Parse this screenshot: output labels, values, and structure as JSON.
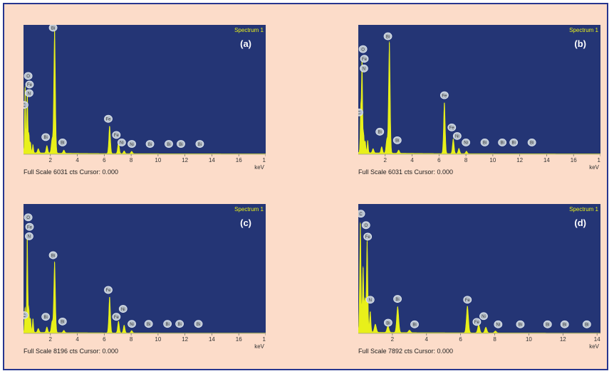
{
  "colors": {
    "plot_bg": "#243575",
    "frame_border": "#27368f",
    "frame_bg": "#fcdcc9",
    "spectrum": "#e8f01a",
    "label_fill": "#b9c3cf",
    "spectrum_title": "#e8f01a"
  },
  "chart_data": [
    {
      "type": "line",
      "panel_label": "(a)",
      "spectrum_title": "Spectrum 1",
      "x_ticks": [
        "2",
        "4",
        "6",
        "8",
        "10",
        "12",
        "14",
        "16",
        "18"
      ],
      "xlabel": "keV",
      "xlim": [
        0,
        18
      ],
      "ylim": [
        0,
        6031
      ],
      "full_scale_text": "Full Scale 6031 cts Cursor: 0.000",
      "peaks": [
        {
          "x": 0.12,
          "y": 3100
        },
        {
          "x": 0.28,
          "y": 2900
        },
        {
          "x": 0.4,
          "y": 900
        },
        {
          "x": 0.52,
          "y": 500
        },
        {
          "x": 0.7,
          "y": 400
        },
        {
          "x": 1.1,
          "y": 200
        },
        {
          "x": 1.74,
          "y": 350
        },
        {
          "x": 2.12,
          "y": 650
        },
        {
          "x": 2.31,
          "y": 5800
        },
        {
          "x": 3.0,
          "y": 150
        },
        {
          "x": 6.4,
          "y": 1300
        },
        {
          "x": 7.06,
          "y": 520
        },
        {
          "x": 7.48,
          "y": 130
        },
        {
          "x": 8.04,
          "y": 110
        }
      ],
      "element_labels": [
        {
          "text": "C",
          "x": 0.05,
          "y": 2300
        },
        {
          "text": "O",
          "x": 0.35,
          "y": 3650
        },
        {
          "text": "Fe",
          "x": 0.45,
          "y": 3250
        },
        {
          "text": "N",
          "x": 0.42,
          "y": 2850
        },
        {
          "text": "Bi",
          "x": 2.2,
          "y": 5900
        },
        {
          "text": "Bi",
          "x": 1.65,
          "y": 800
        },
        {
          "text": "Bi",
          "x": 2.9,
          "y": 550
        },
        {
          "text": "Fe",
          "x": 6.3,
          "y": 1650
        },
        {
          "text": "Fe",
          "x": 6.9,
          "y": 900
        },
        {
          "text": "Ni",
          "x": 7.3,
          "y": 550
        },
        {
          "text": "Ni",
          "x": 8.05,
          "y": 480
        },
        {
          "text": "Bi",
          "x": 9.4,
          "y": 480
        },
        {
          "text": "Bi",
          "x": 10.8,
          "y": 480
        },
        {
          "text": "Bi",
          "x": 11.7,
          "y": 480
        },
        {
          "text": "Bi",
          "x": 13.1,
          "y": 480
        }
      ]
    },
    {
      "type": "line",
      "panel_label": "(b)",
      "spectrum_title": "Spectrum 1",
      "x_ticks": [
        "2",
        "4",
        "6",
        "8",
        "10",
        "12",
        "14",
        "16",
        "18"
      ],
      "xlabel": "keV",
      "xlim": [
        0,
        18
      ],
      "ylim": [
        0,
        6031
      ],
      "full_scale_text": "Full Scale 6031 cts Cursor: 0.000",
      "peaks": [
        {
          "x": 0.18,
          "y": 2100
        },
        {
          "x": 0.28,
          "y": 4300
        },
        {
          "x": 0.4,
          "y": 900
        },
        {
          "x": 0.52,
          "y": 550
        },
        {
          "x": 0.7,
          "y": 600
        },
        {
          "x": 1.1,
          "y": 200
        },
        {
          "x": 1.74,
          "y": 300
        },
        {
          "x": 2.12,
          "y": 650
        },
        {
          "x": 2.31,
          "y": 5200
        },
        {
          "x": 3.0,
          "y": 150
        },
        {
          "x": 6.4,
          "y": 2400
        },
        {
          "x": 7.06,
          "y": 700
        },
        {
          "x": 7.48,
          "y": 250
        },
        {
          "x": 8.04,
          "y": 120
        }
      ],
      "element_labels": [
        {
          "text": "C",
          "x": 0.05,
          "y": 1950
        },
        {
          "text": "O",
          "x": 0.35,
          "y": 4900
        },
        {
          "text": "Fe",
          "x": 0.45,
          "y": 4450
        },
        {
          "text": "N",
          "x": 0.42,
          "y": 4000
        },
        {
          "text": "Bi",
          "x": 2.2,
          "y": 5500
        },
        {
          "text": "Bi",
          "x": 1.6,
          "y": 1050
        },
        {
          "text": "Bi",
          "x": 2.9,
          "y": 650
        },
        {
          "text": "Fe",
          "x": 6.4,
          "y": 2750
        },
        {
          "text": "Fe",
          "x": 6.95,
          "y": 1250
        },
        {
          "text": "Ni",
          "x": 7.35,
          "y": 850
        },
        {
          "text": "Ni",
          "x": 8.0,
          "y": 550
        },
        {
          "text": "Bi",
          "x": 9.4,
          "y": 550
        },
        {
          "text": "Bi",
          "x": 10.7,
          "y": 550
        },
        {
          "text": "Bi",
          "x": 11.55,
          "y": 550
        },
        {
          "text": "Bi",
          "x": 12.9,
          "y": 550
        }
      ]
    },
    {
      "type": "line",
      "panel_label": "(c)",
      "spectrum_title": "Spectrum 1",
      "x_ticks": [
        "2",
        "4",
        "6",
        "8",
        "10",
        "12",
        "14",
        "16",
        "18"
      ],
      "xlabel": "keV",
      "xlim": [
        0,
        18
      ],
      "ylim": [
        0,
        8196
      ],
      "full_scale_text": "Full Scale 8196 cts Cursor: 0.000",
      "peaks": [
        {
          "x": 0.12,
          "y": 1600
        },
        {
          "x": 0.28,
          "y": 6100
        },
        {
          "x": 0.4,
          "y": 1500
        },
        {
          "x": 0.52,
          "y": 900
        },
        {
          "x": 0.7,
          "y": 900
        },
        {
          "x": 1.1,
          "y": 250
        },
        {
          "x": 1.74,
          "y": 350
        },
        {
          "x": 2.12,
          "y": 700
        },
        {
          "x": 2.31,
          "y": 4500
        },
        {
          "x": 3.0,
          "y": 150
        },
        {
          "x": 6.4,
          "y": 2300
        },
        {
          "x": 7.06,
          "y": 750
        },
        {
          "x": 7.48,
          "y": 500
        },
        {
          "x": 8.04,
          "y": 150
        }
      ],
      "element_labels": [
        {
          "text": "C",
          "x": 0.05,
          "y": 1150
        },
        {
          "text": "O",
          "x": 0.35,
          "y": 7350
        },
        {
          "text": "Fe",
          "x": 0.45,
          "y": 6750
        },
        {
          "text": "N",
          "x": 0.42,
          "y": 6150
        },
        {
          "text": "Bi",
          "x": 2.2,
          "y": 4950
        },
        {
          "text": "Bi",
          "x": 1.65,
          "y": 1050
        },
        {
          "text": "Bi",
          "x": 2.9,
          "y": 750
        },
        {
          "text": "Fe",
          "x": 6.3,
          "y": 2750
        },
        {
          "text": "Fe",
          "x": 6.9,
          "y": 1050
        },
        {
          "text": "Ni",
          "x": 7.4,
          "y": 1550
        },
        {
          "text": "Ni",
          "x": 8.05,
          "y": 600
        },
        {
          "text": "Bi",
          "x": 9.3,
          "y": 600
        },
        {
          "text": "Bi",
          "x": 10.7,
          "y": 600
        },
        {
          "text": "Bi",
          "x": 11.6,
          "y": 600
        },
        {
          "text": "Bi",
          "x": 13.0,
          "y": 600
        }
      ]
    },
    {
      "type": "line",
      "panel_label": "(d)",
      "spectrum_title": "Spectrum 1",
      "x_ticks": [
        "2",
        "4",
        "6",
        "8",
        "10",
        "12",
        "14"
      ],
      "xlabel": "keV",
      "xlim": [
        0,
        14.2
      ],
      "ylim": [
        0,
        7892
      ],
      "full_scale_text": "Full Scale 7892 cts Cursor: 0.000",
      "peaks": [
        {
          "x": 0.12,
          "y": 6700
        },
        {
          "x": 0.28,
          "y": 4000
        },
        {
          "x": 0.4,
          "y": 2000
        },
        {
          "x": 0.52,
          "y": 5600
        },
        {
          "x": 0.7,
          "y": 1300
        },
        {
          "x": 1.0,
          "y": 500
        },
        {
          "x": 1.74,
          "y": 400
        },
        {
          "x": 2.31,
          "y": 1600
        },
        {
          "x": 3.0,
          "y": 150
        },
        {
          "x": 6.4,
          "y": 1650
        },
        {
          "x": 7.06,
          "y": 500
        },
        {
          "x": 7.48,
          "y": 350
        },
        {
          "x": 8.04,
          "y": 120
        }
      ],
      "element_labels": [
        {
          "text": "C",
          "x": 0.15,
          "y": 7300
        },
        {
          "text": "O",
          "x": 0.45,
          "y": 6600
        },
        {
          "text": "Fe",
          "x": 0.55,
          "y": 5900
        },
        {
          "text": "N",
          "x": 0.7,
          "y": 2050
        },
        {
          "text": "Bi",
          "x": 2.3,
          "y": 2100
        },
        {
          "text": "Bi",
          "x": 1.75,
          "y": 650
        },
        {
          "text": "Bi",
          "x": 3.3,
          "y": 550
        },
        {
          "text": "Fe",
          "x": 6.4,
          "y": 2050
        },
        {
          "text": "Fe",
          "x": 6.95,
          "y": 700
        },
        {
          "text": "Ni",
          "x": 7.35,
          "y": 1050
        },
        {
          "text": "Ni",
          "x": 8.2,
          "y": 550
        },
        {
          "text": "Bi",
          "x": 9.5,
          "y": 550
        },
        {
          "text": "Bi",
          "x": 11.1,
          "y": 550
        },
        {
          "text": "Bi",
          "x": 12.1,
          "y": 550
        },
        {
          "text": "Bi",
          "x": 13.4,
          "y": 550
        }
      ]
    }
  ]
}
